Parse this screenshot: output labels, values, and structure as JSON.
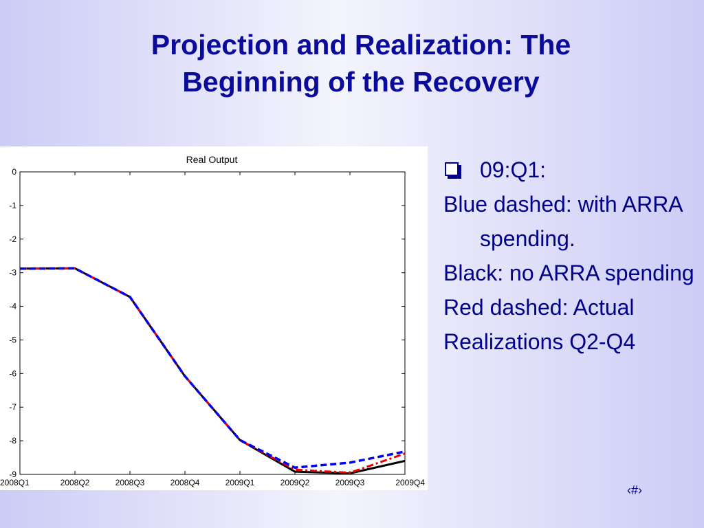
{
  "slide": {
    "title_lines": [
      "Projection and Realization: The",
      "Beginning of the Recovery"
    ],
    "bullets": {
      "heading": "09:Q1:",
      "lines": [
        "Blue dashed: with ARRA spending.",
        "Black: no ARRA spending",
        "Red dashed: Actual",
        "Realizations Q2-Q4"
      ]
    },
    "page_number": "‹#›"
  },
  "chart_data": {
    "type": "line",
    "title": "Real Output",
    "xlabel": "",
    "ylabel": "",
    "categories": [
      "2008Q1",
      "2008Q2",
      "2008Q3",
      "2008Q4",
      "2009Q1",
      "2009Q2",
      "2009Q3",
      "2009Q4"
    ],
    "ylim": [
      -9,
      0
    ],
    "yticks": [
      0,
      -1,
      -2,
      -3,
      -4,
      -5,
      -6,
      -7,
      -8,
      -9
    ],
    "grid": false,
    "legend": "none",
    "series": [
      {
        "values": [
          -2.88,
          -2.87,
          -3.72,
          -6.08,
          -7.98,
          -8.92,
          -8.97,
          -8.6
        ],
        "color": "#000000",
        "style": "solid"
      },
      {
        "values": [
          -2.88,
          -2.87,
          -3.72,
          -6.08,
          -7.98,
          -8.8,
          -8.65,
          -8.32
        ],
        "color": "#0000ee",
        "style": "dashed"
      },
      {
        "values": [
          -2.88,
          -2.87,
          -3.72,
          -6.08,
          -7.98,
          -8.86,
          -8.95,
          -8.38
        ],
        "color": "#ee0000",
        "style": "dashdot"
      }
    ]
  }
}
